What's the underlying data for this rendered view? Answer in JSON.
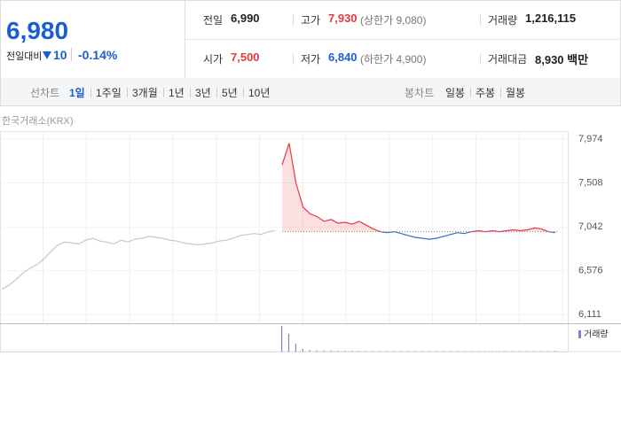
{
  "quote": {
    "price": "6,980",
    "change_label": "전일대비",
    "change": "10",
    "change_rate": "-0.14%"
  },
  "info": {
    "rows": [
      [
        {
          "label": "전일",
          "value": "6,990"
        },
        {
          "label": "고가",
          "value": "7,930",
          "note": "(상한가 9,080)"
        },
        {
          "label": "거래량",
          "value": "1,216,115"
        }
      ],
      [
        {
          "label": "시가",
          "value": "7,500"
        },
        {
          "label": "저가",
          "value": "6,840",
          "note": "(하한가 4,900)"
        },
        {
          "label": "거래대금",
          "value": "8,930 백만"
        }
      ]
    ]
  },
  "tabs": {
    "line_label": "선차트",
    "line_periods": [
      "1일",
      "1주일",
      "3개월",
      "1년",
      "3년",
      "5년",
      "10년"
    ],
    "selected": 0,
    "candle_label": "봉차트",
    "candle_periods": [
      "일봉",
      "주봉",
      "월봉"
    ]
  },
  "chart_data": [
    {
      "type": "line",
      "source": "한국거래소(KRX)",
      "baseline": 6990,
      "ylim": [
        6017,
        8059
      ],
      "yticks": [
        {
          "value": 7974,
          "label": "7,974"
        },
        {
          "value": 7508,
          "label": "7,508"
        },
        {
          "value": 7042,
          "label": "7,042"
        },
        {
          "value": 6576,
          "label": "6,576"
        },
        {
          "value": 6111,
          "label": "6,111"
        }
      ],
      "grid": true,
      "series": [
        {
          "color": "#c8c8c8",
          "values": [
            6380,
            6420,
            6480,
            6550,
            6600,
            6640,
            6700,
            6780,
            6850,
            6880,
            6870,
            6860,
            6900,
            6920,
            6890,
            6880,
            6860,
            6900,
            6880,
            6910,
            6920,
            6940,
            6930,
            6920,
            6900,
            6890,
            6870,
            6860,
            6850,
            6860,
            6870,
            6890,
            6900,
            6920,
            6950,
            6960,
            6970,
            6960,
            6990,
            7000,
            null,
            null,
            null,
            null,
            null,
            null,
            null,
            null,
            null,
            null,
            null,
            null,
            null,
            null,
            null,
            null,
            null,
            null,
            null,
            null,
            null,
            null,
            null,
            null,
            null,
            null,
            null,
            null,
            null,
            null,
            null,
            null,
            null,
            null,
            null,
            null,
            null,
            null,
            null,
            null
          ]
        },
        {
          "color": "#e8383d",
          "below_color": "#2f6fc9",
          "values": [
            null,
            null,
            null,
            null,
            null,
            null,
            null,
            null,
            null,
            null,
            null,
            null,
            null,
            null,
            null,
            null,
            null,
            null,
            null,
            null,
            null,
            null,
            null,
            null,
            null,
            null,
            null,
            null,
            null,
            null,
            null,
            null,
            null,
            null,
            null,
            null,
            null,
            null,
            null,
            null,
            7700,
            7930,
            7500,
            7250,
            7180,
            7150,
            7100,
            7120,
            7080,
            7090,
            7070,
            7100,
            7060,
            7020,
            6990,
            6980,
            6990,
            6970,
            6950,
            6930,
            6920,
            6910,
            6920,
            6940,
            6960,
            6980,
            6970,
            6990,
            7000,
            6990,
            7000,
            6990,
            7000,
            7010,
            7000,
            7010,
            7030,
            7020,
            6990,
            6980
          ]
        }
      ]
    },
    {
      "type": "bar",
      "ylim": [
        0,
        100
      ],
      "series": [
        {
          "name": "거래량",
          "color": "#8e7cc3",
          "values": [
            null,
            null,
            null,
            null,
            null,
            null,
            null,
            null,
            null,
            null,
            null,
            null,
            null,
            null,
            null,
            null,
            null,
            null,
            null,
            null,
            null,
            null,
            null,
            null,
            null,
            null,
            null,
            null,
            null,
            null,
            null,
            null,
            null,
            null,
            null,
            null,
            null,
            null,
            null,
            null,
            100,
            70,
            30,
            10,
            6,
            5,
            4,
            4,
            3,
            3,
            3,
            3,
            2,
            2,
            2,
            2,
            2,
            2,
            2,
            2,
            2,
            2,
            2,
            2,
            2,
            2,
            2,
            2,
            2,
            2,
            2,
            2,
            2,
            2,
            2,
            2,
            2,
            2,
            2,
            3
          ]
        }
      ]
    }
  ]
}
